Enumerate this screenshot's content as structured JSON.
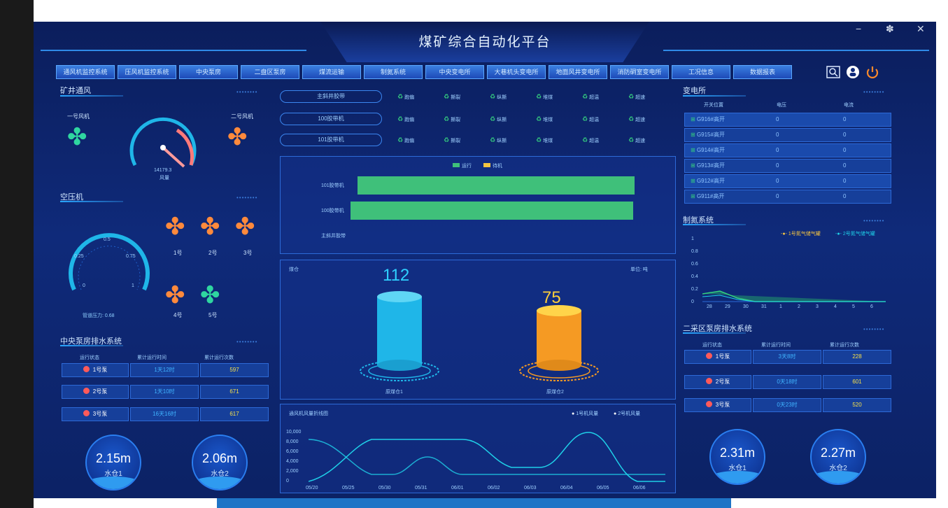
{
  "window": {
    "title": "煤矿综合自动化平台",
    "min": "−",
    "max": "✽",
    "close": "✕"
  },
  "nav": {
    "tabs": [
      "通风机监控系统",
      "压风机监控系统",
      "中央泵房",
      "二盘区泵房",
      "煤流运输",
      "制氮系统",
      "中央变电所",
      "大巷机头变电所",
      "地面风井变电所",
      "消防硐室变电所",
      "工况信息",
      "数据报表"
    ],
    "icons": [
      "search-icon",
      "user-icon",
      "power-icon"
    ]
  },
  "left": {
    "ventilation": {
      "title": "矿井通风",
      "fan1": "一号风机",
      "fan2": "二号风机",
      "gauge_value": "14179.3",
      "gauge_unit": "风量"
    },
    "compressor": {
      "title": "空压机",
      "gauge_ticks": [
        "0.25",
        "0.5",
        "0.75",
        "0",
        "1"
      ],
      "pressure_label": "管道压力: 0.68",
      "fans": [
        "1号",
        "2号",
        "3号",
        "4号",
        "5号"
      ]
    },
    "pump": {
      "title": "中央泵房排水系统",
      "headers": [
        "运行状态",
        "累计运行时间",
        "累计运行次数"
      ],
      "rows": [
        {
          "name": "1号泵",
          "time": "1天12时",
          "count": "597"
        },
        {
          "name": "2号泵",
          "time": "1天10时",
          "count": "671"
        },
        {
          "name": "3号泵",
          "time": "16天16时",
          "count": "617"
        }
      ]
    },
    "tanks": [
      {
        "value": "2.15m",
        "label": "水仓1"
      },
      {
        "value": "2.06m",
        "label": "水仓2"
      }
    ]
  },
  "center": {
    "belts": [
      {
        "name": "主斜井胶带",
        "stats": [
          "跑偏",
          "撕裂",
          "纵撕",
          "堆煤",
          "超温",
          "超速"
        ]
      },
      {
        "name": "100胶带机",
        "stats": [
          "跑偏",
          "撕裂",
          "纵撕",
          "堆煤",
          "超温",
          "超速"
        ]
      },
      {
        "name": "101胶带机",
        "stats": [
          "跑偏",
          "撕裂",
          "纵撕",
          "堆煤",
          "超温",
          "超速"
        ]
      }
    ],
    "runtime_chart": {
      "legend": [
        "运行",
        "待机"
      ],
      "colors": {
        "run": "#3fc07a",
        "standby": "#f5c441"
      },
      "categories": [
        "101胶带机",
        "100胶带机",
        "主斜井胶带"
      ],
      "values": [
        1.0,
        1.02,
        0
      ]
    },
    "storage": {
      "title": "煤仓",
      "unit": "单位: 吨",
      "items": [
        {
          "value": "112",
          "label": "原煤仓1",
          "color": "#1fb6e8"
        },
        {
          "value": "75",
          "label": "原煤仓2",
          "color": "#f59a23"
        }
      ]
    },
    "flow": {
      "title": "通风机风量折线图",
      "legend": [
        "1号机风量",
        "2号机风量"
      ],
      "yticks": [
        "10,000",
        "8,000",
        "6,000",
        "4,000",
        "2,000",
        "0"
      ],
      "xticks": [
        "05/20",
        "05/25",
        "05/30",
        "05/31",
        "06/01",
        "06/02",
        "06/03",
        "06/04",
        "06/05",
        "06/06"
      ]
    }
  },
  "right": {
    "substation": {
      "title": "变电所",
      "headers": [
        "开关位置",
        "电压",
        "电流"
      ],
      "rows": [
        {
          "name": "G916#高开",
          "v": "0",
          "a": "0"
        },
        {
          "name": "G915#高开",
          "v": "0",
          "a": "0"
        },
        {
          "name": "G914#高开",
          "v": "0",
          "a": "0"
        },
        {
          "name": "G913#高开",
          "v": "0",
          "a": "0"
        },
        {
          "name": "G912#高开",
          "v": "0",
          "a": "0"
        },
        {
          "name": "G911#高开",
          "v": "0",
          "a": "0"
        }
      ]
    },
    "nitrogen": {
      "title": "制氮系统",
      "legend": [
        "1号氮气储气罐",
        "2号氮气储气罐"
      ],
      "yticks": [
        "1",
        "0.8",
        "0.6",
        "0.4",
        "0.2",
        "0"
      ],
      "xticks": [
        "28",
        "29",
        "30",
        "31",
        "1",
        "2",
        "3",
        "4",
        "5",
        "6"
      ]
    },
    "pump2": {
      "title": "二采区泵房排水系统",
      "headers": [
        "运行状态",
        "累计运行时间",
        "累计运行次数"
      ],
      "rows": [
        {
          "name": "1号泵",
          "time": "3天8时",
          "count": "228"
        },
        {
          "name": "2号泵",
          "time": "0天18时",
          "count": "601"
        },
        {
          "name": "3号泵",
          "time": "0天23时",
          "count": "520"
        }
      ]
    },
    "tanks": [
      {
        "value": "2.31m",
        "label": "水仓1"
      },
      {
        "value": "2.27m",
        "label": "水仓2"
      }
    ]
  }
}
